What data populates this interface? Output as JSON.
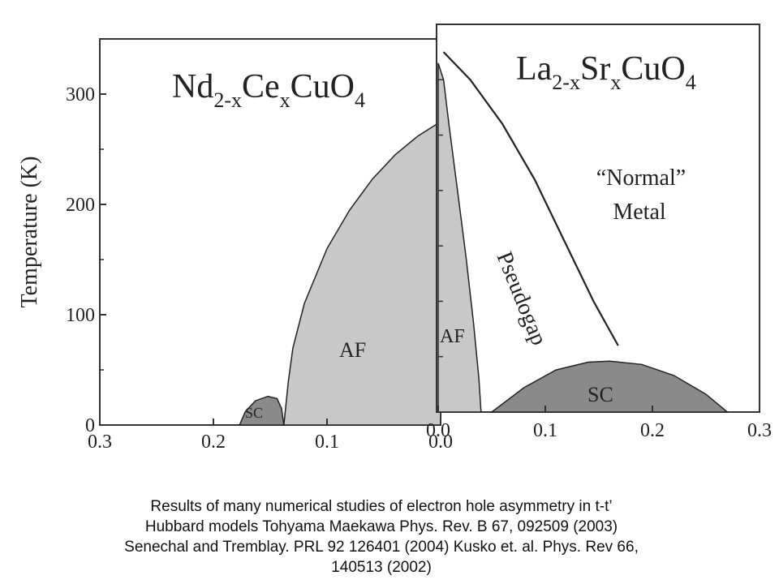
{
  "chart_data": [
    {
      "type": "area",
      "title": "Nd2-xCexCuO4",
      "title_parts": [
        "Nd",
        "2-x",
        "Ce",
        "x",
        "CuO",
        "4"
      ],
      "ylabel": "Temperature  (K)",
      "xlim": [
        0.3,
        0.0
      ],
      "ylim": [
        0,
        350
      ],
      "x_ticks": [
        "0.3",
        "0.2",
        "0.1",
        "0.0"
      ],
      "y_ticks": [
        "0",
        "100",
        "200",
        "300"
      ],
      "y_tick_values": [
        0,
        100,
        200,
        300
      ],
      "x_tick_values": [
        0.3,
        0.2,
        0.1,
        0.0
      ],
      "series": [
        {
          "name": "AF",
          "color": "#c8c8c8",
          "x": [
            0.138,
            0.134,
            0.13,
            0.12,
            0.1,
            0.08,
            0.06,
            0.04,
            0.02,
            0.003
          ],
          "y": [
            0,
            40,
            70,
            110,
            160,
            195,
            223,
            245,
            262,
            273
          ]
        },
        {
          "name": "SC",
          "color": "#8a8a8a",
          "x": [
            0.177,
            0.172,
            0.163,
            0.152,
            0.144,
            0.14,
            0.138
          ],
          "y": [
            0,
            12,
            22,
            26,
            24,
            15,
            0
          ]
        }
      ]
    },
    {
      "type": "area",
      "title": "La2-xSrxCuO4",
      "title_parts": [
        "La",
        "2-x",
        "Sr",
        "x",
        "CuO",
        "4"
      ],
      "xlim": [
        0.0,
        0.3
      ],
      "ylim": [
        0,
        350
      ],
      "x_ticks": [
        "0.0",
        "0.1",
        "0.2",
        "0.3"
      ],
      "x_tick_values": [
        0.0,
        0.1,
        0.2,
        0.3
      ],
      "labels": {
        "normal_metal_line1": "“Normal”",
        "normal_metal_line2": "Metal",
        "pseudogap": "Pseudogap"
      },
      "series": [
        {
          "name": "AF",
          "color": "#c8c8c8",
          "x": [
            0.0,
            0.005,
            0.01,
            0.018,
            0.026,
            0.033,
            0.038,
            0.04
          ],
          "y": [
            315,
            300,
            260,
            200,
            140,
            80,
            30,
            0
          ]
        },
        {
          "name": "SC",
          "color": "#8a8a8a",
          "x": [
            0.05,
            0.08,
            0.11,
            0.14,
            0.16,
            0.19,
            0.22,
            0.25,
            0.27
          ],
          "y": [
            0,
            22,
            38,
            45,
            46,
            43,
            33,
            16,
            0
          ]
        },
        {
          "name": "Pseudogap",
          "color": "#222222",
          "x": [
            0.005,
            0.03,
            0.06,
            0.09,
            0.12,
            0.145,
            0.168
          ],
          "y": [
            325,
            300,
            260,
            210,
            150,
            100,
            60
          ]
        }
      ]
    }
  ],
  "caption": "Results of   many numerical studies of electron hole asymmetry in t-t’\nHubbard models Tohyama Maekawa Phys. Rev. B 67, 092509 (2003)\nSenechal and Tremblay. PRL 92 126401 (2004) Kusko et. al. Phys. Rev 66,\n140513 (2002)"
}
